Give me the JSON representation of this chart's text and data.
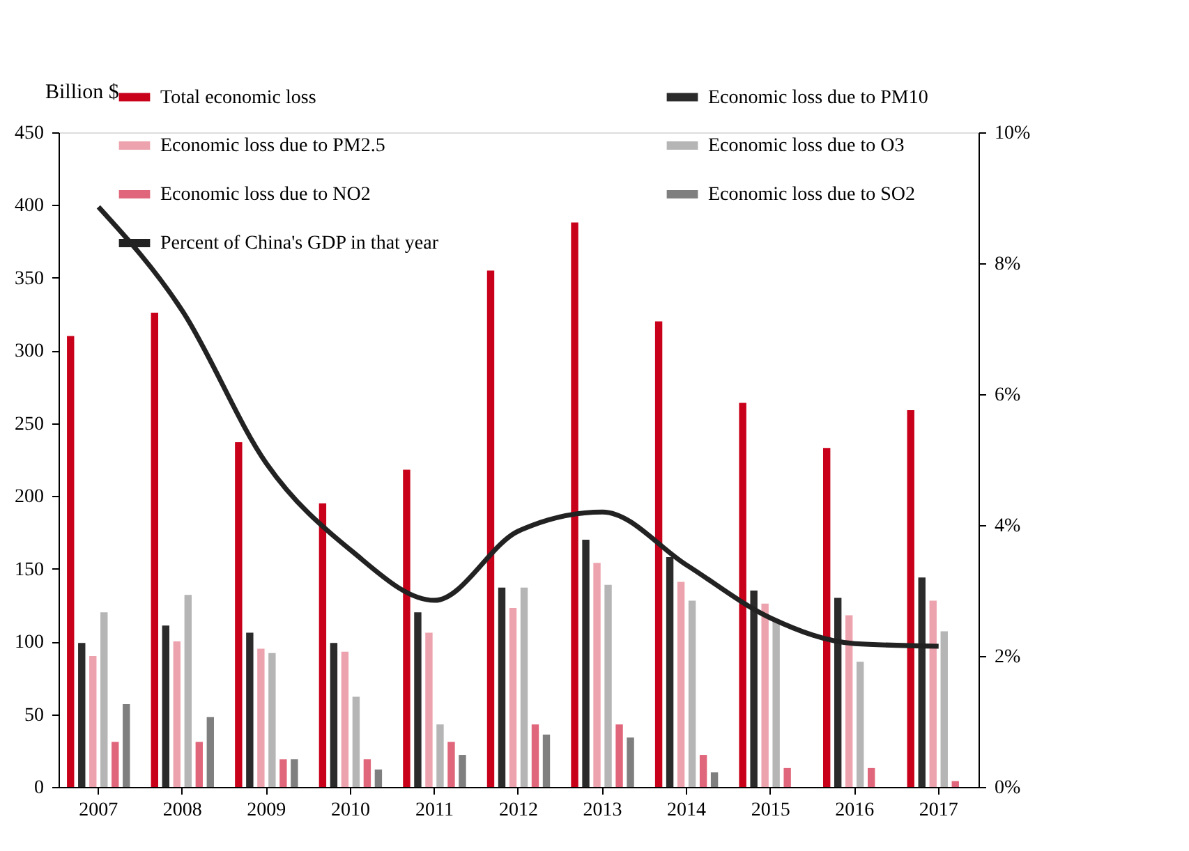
{
  "chart_data": {
    "type": "bar",
    "ylabel": "Billion $",
    "categories": [
      "2007",
      "2008",
      "2009",
      "2010",
      "2011",
      "2012",
      "2013",
      "2014",
      "2015",
      "2016",
      "2017"
    ],
    "series": [
      {
        "name": "Total economic loss",
        "color": "#c8001a",
        "values": [
          310,
          326,
          237,
          195,
          218,
          355,
          388,
          320,
          264,
          233,
          259
        ]
      },
      {
        "name": "Economic loss due to PM10",
        "color": "#2b2b2b",
        "values": [
          99,
          111,
          106,
          99,
          120,
          137,
          170,
          158,
          135,
          130,
          144
        ]
      },
      {
        "name": "Economic loss due to PM2.5",
        "color": "#eda3ae",
        "values": [
          90,
          100,
          95,
          93,
          106,
          123,
          154,
          141,
          126,
          118,
          128
        ]
      },
      {
        "name": "Economic loss due to O3",
        "color": "#b5b5b5",
        "values": [
          120,
          132,
          92,
          62,
          43,
          137,
          139,
          128,
          115,
          86,
          107
        ]
      },
      {
        "name": "Economic loss due to NO2",
        "color": "#e0677b",
        "values": [
          31,
          31,
          19,
          19,
          31,
          43,
          43,
          22,
          13,
          13,
          4
        ]
      },
      {
        "name": "Economic loss due to SO2",
        "color": "#7f7f7f",
        "values": [
          57,
          48,
          19,
          12,
          22,
          36,
          34,
          10,
          null,
          null,
          null
        ]
      },
      {
        "name": "Percent of China's GDP in that year",
        "type": "line",
        "axis": "y2",
        "color": "#222222",
        "values": [
          8.86,
          7.27,
          4.94,
          3.62,
          2.85,
          3.91,
          4.2,
          3.39,
          2.58,
          2.19,
          2.15
        ]
      }
    ],
    "ylim": [
      0,
      450
    ],
    "yticks": [
      0,
      50,
      100,
      150,
      200,
      250,
      300,
      350,
      400,
      450
    ],
    "y2lim": [
      0,
      10
    ],
    "y2ticks": [
      {
        "value": 0,
        "label": "0%"
      },
      {
        "value": 2,
        "label": "2%"
      },
      {
        "value": 4,
        "label": "4%"
      },
      {
        "value": 6,
        "label": "6%"
      },
      {
        "value": 8,
        "label": "8%"
      },
      {
        "value": 10,
        "label": "10%"
      }
    ],
    "grid": false,
    "legend": "top",
    "line_style": "solid",
    "marker": "none"
  }
}
